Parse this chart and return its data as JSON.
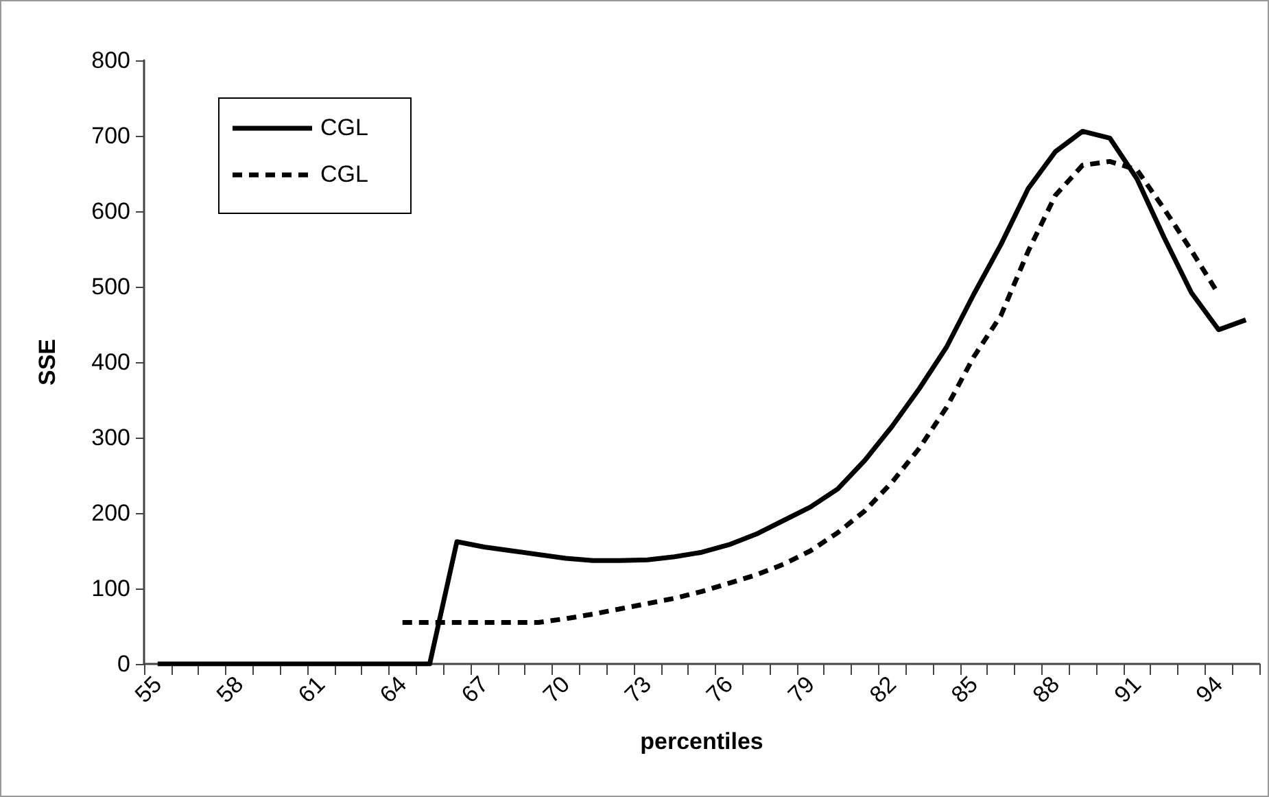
{
  "chart_data": {
    "type": "line",
    "xlabel": "percentiles",
    "ylabel": "SSE",
    "categories": [
      "55",
      null,
      null,
      "58",
      null,
      null,
      "61",
      null,
      null,
      "64",
      null,
      null,
      "67",
      null,
      null,
      "70",
      null,
      null,
      "73",
      null,
      null,
      "76",
      null,
      null,
      "79",
      null,
      null,
      "82",
      null,
      null,
      "85",
      null,
      null,
      "88",
      null,
      null,
      "91",
      null,
      null,
      "94",
      null
    ],
    "series": [
      {
        "name": "CGL",
        "color": "#000000",
        "line_style": "solid",
        "values": [
          0,
          0,
          0,
          0,
          0,
          0,
          0,
          0,
          0,
          0,
          0,
          162,
          155,
          150,
          145,
          140,
          137,
          137,
          138,
          142,
          148,
          158,
          172,
          190,
          208,
          232,
          270,
          315,
          365,
          420,
          490,
          556,
          630,
          679,
          706,
          697,
          643,
          565,
          492,
          443,
          456
        ]
      },
      {
        "name": "CGL",
        "color": "#000000",
        "line_style": "dashed",
        "values": [
          null,
          null,
          null,
          null,
          null,
          null,
          null,
          null,
          null,
          55,
          55,
          55,
          55,
          55,
          55,
          60,
          66,
          73,
          80,
          87,
          96,
          107,
          118,
          132,
          150,
          174,
          203,
          241,
          286,
          340,
          407,
          462,
          547,
          621,
          661,
          666,
          655,
          603,
          548,
          490,
          null
        ]
      }
    ],
    "ylim": [
      0,
      800
    ],
    "yticks": [
      0,
      100,
      200,
      300,
      400,
      500,
      600,
      700,
      800
    ],
    "grid": false,
    "legend": "top left",
    "marker": "none"
  }
}
